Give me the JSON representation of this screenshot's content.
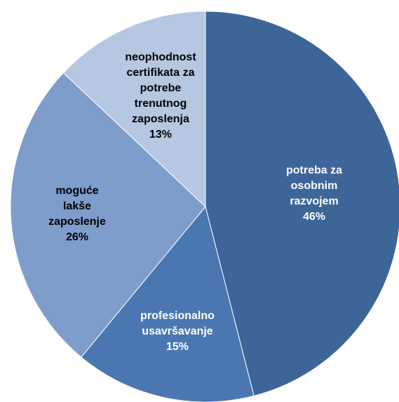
{
  "chart_data": {
    "type": "pie",
    "title": "",
    "start_angle_deg": 0,
    "direction": "clockwise",
    "slices": [
      {
        "name": "potreba za osobnim razvojem",
        "label_lines": [
          "potreba za",
          "osobnim",
          "razvojem"
        ],
        "percent_label": "46%",
        "value": 46,
        "color": "#3D6598",
        "text_color": "#FFFFFF"
      },
      {
        "name": "profesionalno usavršavanje",
        "label_lines": [
          "profesionalno",
          "usavršavanje"
        ],
        "percent_label": "15%",
        "value": 15,
        "color": "#4A77B2",
        "text_color": "#FFFFFF"
      },
      {
        "name": "moguće lakše zaposlenje",
        "label_lines": [
          "moguće",
          "lakše",
          "zaposlenje"
        ],
        "percent_label": "26%",
        "value": 26,
        "color": "#7E9DCA",
        "text_color": "#000000"
      },
      {
        "name": "neophodnost certifikata za potrebe trenutnog zaposlenja",
        "label_lines": [
          "neophodnost",
          "certifikata za",
          "potrebe",
          "trenutnog",
          "zaposlenja"
        ],
        "percent_label": "13%",
        "value": 13,
        "color": "#B6C7E2",
        "text_color": "#000000"
      }
    ]
  }
}
